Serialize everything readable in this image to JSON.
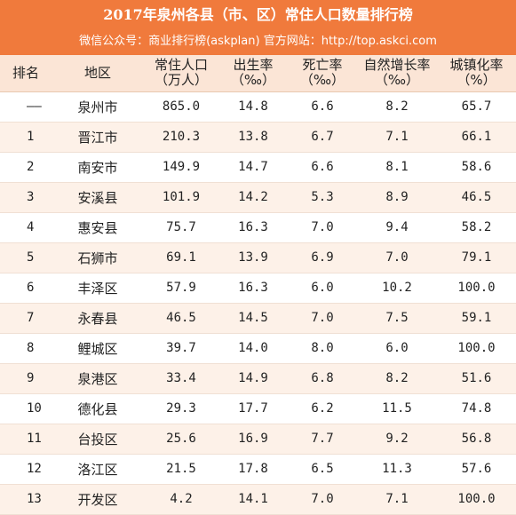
{
  "title": "2017年泉州各县（市、区）常住人口数量排行榜",
  "subtitle": "微信公众号：商业排行榜(askplan)  官方网站：http://top.askci.com",
  "columns": [
    {
      "line1": "排名",
      "line2": ""
    },
    {
      "line1": "地区",
      "line2": ""
    },
    {
      "line1": "常住人口",
      "line2": "（万人）"
    },
    {
      "line1": "出生率",
      "line2": "（‰）"
    },
    {
      "line1": "死亡率",
      "line2": "（‰）"
    },
    {
      "line1": "自然增长率",
      "line2": "（‰）"
    },
    {
      "line1": "城镇化率",
      "line2": "（%）"
    }
  ],
  "rows": [
    {
      "rank": "——",
      "region": "泉州市",
      "population": "865.0",
      "birth": "14.8",
      "death": "6.6",
      "growth": "8.2",
      "urban": "65.7"
    },
    {
      "rank": "1",
      "region": "晋江市",
      "population": "210.3",
      "birth": "13.8",
      "death": "6.7",
      "growth": "7.1",
      "urban": "66.1"
    },
    {
      "rank": "2",
      "region": "南安市",
      "population": "149.9",
      "birth": "14.7",
      "death": "6.6",
      "growth": "8.1",
      "urban": "58.6"
    },
    {
      "rank": "3",
      "region": "安溪县",
      "population": "101.9",
      "birth": "14.2",
      "death": "5.3",
      "growth": "8.9",
      "urban": "46.5"
    },
    {
      "rank": "4",
      "region": "惠安县",
      "population": "75.7",
      "birth": "16.3",
      "death": "7.0",
      "growth": "9.4",
      "urban": "58.2"
    },
    {
      "rank": "5",
      "region": "石狮市",
      "population": "69.1",
      "birth": "13.9",
      "death": "6.9",
      "growth": "7.0",
      "urban": "79.1"
    },
    {
      "rank": "6",
      "region": "丰泽区",
      "population": "57.9",
      "birth": "16.3",
      "death": "6.0",
      "growth": "10.2",
      "urban": "100.0"
    },
    {
      "rank": "7",
      "region": "永春县",
      "population": "46.5",
      "birth": "14.5",
      "death": "7.0",
      "growth": "7.5",
      "urban": "59.1"
    },
    {
      "rank": "8",
      "region": "鲤城区",
      "population": "39.7",
      "birth": "14.0",
      "death": "8.0",
      "growth": "6.0",
      "urban": "100.0"
    },
    {
      "rank": "9",
      "region": "泉港区",
      "population": "33.4",
      "birth": "14.9",
      "death": "6.8",
      "growth": "8.2",
      "urban": "51.6"
    },
    {
      "rank": "10",
      "region": "德化县",
      "population": "29.3",
      "birth": "17.7",
      "death": "6.2",
      "growth": "11.5",
      "urban": "74.8"
    },
    {
      "rank": "11",
      "region": "台投区",
      "population": "25.6",
      "birth": "16.9",
      "death": "7.7",
      "growth": "9.2",
      "urban": "56.8"
    },
    {
      "rank": "12",
      "region": "洛江区",
      "population": "21.5",
      "birth": "17.8",
      "death": "6.5",
      "growth": "11.3",
      "urban": "57.6"
    },
    {
      "rank": "13",
      "region": "开发区",
      "population": "4.2",
      "birth": "14.1",
      "death": "7.0",
      "growth": "7.1",
      "urban": "100.0"
    }
  ]
}
